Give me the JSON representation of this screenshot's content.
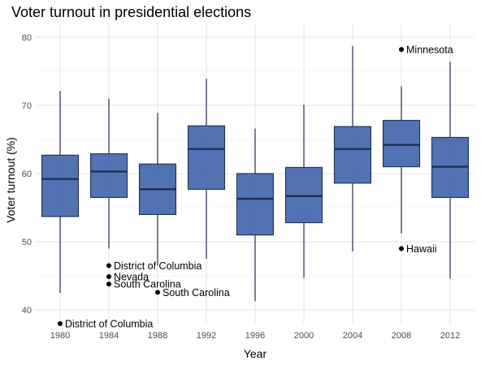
{
  "chart_data": {
    "type": "box",
    "title": "Voter turnout in presidential elections",
    "xlabel": "Year",
    "ylabel": "Voter turnout (%)",
    "categories": [
      "1980",
      "1984",
      "1988",
      "1992",
      "1996",
      "2000",
      "2004",
      "2008",
      "2012"
    ],
    "ylim": [
      38,
      82
    ],
    "yticks": [
      40,
      50,
      60,
      70,
      80
    ],
    "grid": true,
    "box_fill": "#4267ac",
    "box_stroke": "#1f2f52",
    "median_color": "#1f2f52",
    "boxes": [
      {
        "year": "1980",
        "min": 42.5,
        "q1": 53.7,
        "median": 59.2,
        "q3": 62.7,
        "max": 72.1
      },
      {
        "year": "1984",
        "min": 49.0,
        "q1": 56.5,
        "median": 60.3,
        "q3": 62.9,
        "max": 71.0
      },
      {
        "year": "1988",
        "min": 46.5,
        "q1": 54.0,
        "median": 57.7,
        "q3": 61.4,
        "max": 68.9
      },
      {
        "year": "1992",
        "min": 47.5,
        "q1": 57.7,
        "median": 63.6,
        "q3": 67.0,
        "max": 73.9
      },
      {
        "year": "1996",
        "min": 41.3,
        "q1": 51.0,
        "median": 56.3,
        "q3": 60.0,
        "max": 66.6
      },
      {
        "year": "2000",
        "min": 44.7,
        "q1": 52.8,
        "median": 56.7,
        "q3": 60.9,
        "max": 70.1
      },
      {
        "year": "2004",
        "min": 48.6,
        "q1": 58.6,
        "median": 63.6,
        "q3": 66.9,
        "max": 78.7
      },
      {
        "year": "2008",
        "min": 51.2,
        "q1": 61.0,
        "median": 64.2,
        "q3": 67.8,
        "max": 72.8
      },
      {
        "year": "2012",
        "min": 44.6,
        "q1": 56.5,
        "median": 61.0,
        "q3": 65.3,
        "max": 76.4
      }
    ],
    "outliers": [
      {
        "year": "1980",
        "value": 38.0,
        "label": "District of Columbia"
      },
      {
        "year": "1984",
        "value": 46.5,
        "label": "District of Columbia"
      },
      {
        "year": "1984",
        "value": 44.9,
        "label": "Nevada"
      },
      {
        "year": "1984",
        "value": 43.8,
        "label": "South Carolina"
      },
      {
        "year": "1988",
        "value": 42.6,
        "label": "South Carolina"
      },
      {
        "year": "2008",
        "value": 78.2,
        "label": "Minnesota"
      },
      {
        "year": "2008",
        "value": 49.0,
        "label": "Hawaii"
      }
    ]
  }
}
